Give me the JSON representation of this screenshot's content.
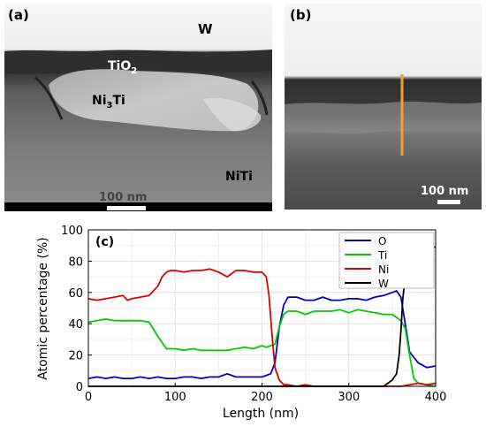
{
  "panels": {
    "a": {
      "label": "(a)",
      "layer_labels": {
        "w": "W",
        "tio2": "TiO",
        "tio2_sub": "2",
        "ni3ti_pre": "Ni",
        "ni3ti_sub": "3",
        "ni3ti_post": "Ti",
        "niti": "NiTi"
      },
      "scale_bar": "100 nm"
    },
    "b": {
      "label": "(b)",
      "scale_bar": "100 nm",
      "line_color": "#f0a030"
    }
  },
  "chart_data": {
    "type": "line",
    "panel_label": "(c)",
    "xlabel": "Length (nm)",
    "ylabel": "Atomic percentage (%)",
    "xlim": [
      0,
      400
    ],
    "ylim": [
      0,
      100
    ],
    "x_ticks": [
      "0",
      "100",
      "200",
      "300",
      "400"
    ],
    "y_ticks": [
      "0",
      "20",
      "40",
      "60",
      "80",
      "100"
    ],
    "grid": true,
    "legend_position": "top-right",
    "series": [
      {
        "name": "O",
        "color": "#0000cc",
        "x": [
          0,
          10,
          20,
          30,
          40,
          50,
          60,
          70,
          80,
          90,
          100,
          110,
          120,
          130,
          140,
          150,
          160,
          170,
          180,
          190,
          200,
          205,
          210,
          215,
          220,
          225,
          230,
          240,
          250,
          260,
          270,
          280,
          290,
          300,
          310,
          320,
          330,
          340,
          350,
          355,
          360,
          365,
          370,
          380,
          390,
          400
        ],
        "y": [
          5,
          6,
          5,
          6,
          5,
          5,
          6,
          5,
          6,
          5,
          5,
          6,
          6,
          5,
          6,
          6,
          8,
          6,
          6,
          6,
          6,
          7,
          8,
          15,
          38,
          52,
          57,
          57,
          55,
          55,
          57,
          55,
          55,
          56,
          56,
          55,
          57,
          58,
          60,
          61,
          57,
          40,
          22,
          15,
          12,
          13
        ]
      },
      {
        "name": "Ti",
        "color": "#00cc00",
        "x": [
          0,
          10,
          20,
          30,
          40,
          50,
          60,
          70,
          80,
          90,
          95,
          100,
          110,
          120,
          130,
          140,
          150,
          160,
          170,
          180,
          190,
          200,
          205,
          210,
          215,
          220,
          225,
          230,
          240,
          250,
          260,
          270,
          280,
          290,
          300,
          310,
          320,
          330,
          340,
          350,
          360,
          365,
          370,
          375,
          380,
          390,
          400
        ],
        "y": [
          41,
          42,
          43,
          42,
          42,
          42,
          42,
          41,
          32,
          24,
          24,
          24,
          23,
          24,
          23,
          23,
          23,
          23,
          24,
          25,
          24,
          26,
          25,
          26,
          27,
          38,
          46,
          48,
          48,
          46,
          48,
          48,
          48,
          49,
          47,
          49,
          48,
          47,
          46,
          46,
          42,
          37,
          20,
          5,
          2,
          1,
          0
        ]
      },
      {
        "name": "Ni",
        "color": "#dd0000",
        "x": [
          0,
          10,
          20,
          30,
          40,
          45,
          50,
          60,
          70,
          80,
          85,
          90,
          95,
          100,
          110,
          120,
          130,
          140,
          150,
          160,
          170,
          180,
          190,
          200,
          205,
          208,
          212,
          215,
          220,
          225,
          230,
          240,
          250,
          260,
          270,
          300,
          350,
          360,
          370,
          380,
          390,
          400
        ],
        "y": [
          56,
          55,
          56,
          57,
          58,
          55,
          56,
          57,
          58,
          64,
          70,
          73,
          74,
          74,
          73,
          74,
          74,
          75,
          73,
          70,
          74,
          74,
          73,
          73,
          70,
          58,
          30,
          12,
          4,
          1,
          1,
          0,
          1,
          0,
          0,
          0,
          0,
          0,
          1,
          2,
          1,
          2
        ]
      },
      {
        "name": "W",
        "color": "#000000",
        "x": [
          0,
          50,
          100,
          150,
          200,
          250,
          300,
          340,
          345,
          350,
          355,
          358,
          360,
          362,
          365,
          368,
          370,
          375,
          380,
          385,
          390,
          395,
          400
        ],
        "y": [
          0,
          0,
          0,
          0,
          0,
          0,
          0,
          0,
          2,
          4,
          8,
          20,
          35,
          55,
          70,
          80,
          84,
          87,
          88,
          89,
          89,
          89,
          89
        ]
      }
    ]
  }
}
